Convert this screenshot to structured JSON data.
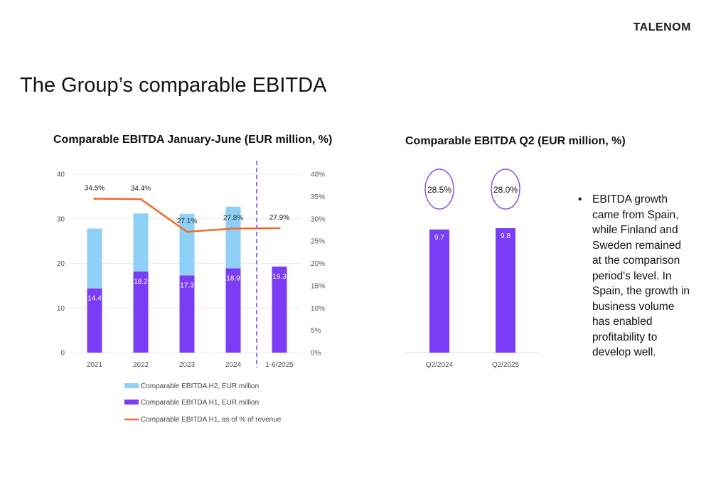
{
  "logo": "TALENOM",
  "slide_title": "The Group’s comparable EBITDA",
  "bullet": "EBITDA growth came from Spain, while Finland and Sweden remained at the comparison period's level. In Spain, the growth in business volume has enabled profitability to develop well.",
  "colors": {
    "h1": "#7a3df5",
    "h2": "#8fd0f7",
    "line": "#f06a2c",
    "divider": "#7a3df5",
    "circle": "#8a55e0"
  },
  "chart_data": [
    {
      "type": "bar",
      "title": "Comparable EBITDA January-June (EUR million, %)",
      "categories": [
        "2021",
        "2022",
        "2023",
        "2024",
        "1-6/2025"
      ],
      "stacked": true,
      "ylim": [
        0,
        40
      ],
      "y_ticks": [
        "0",
        "10",
        "20",
        "30",
        "40"
      ],
      "y2lim": [
        0,
        40
      ],
      "y2_ticks": [
        "0%",
        "5%",
        "10%",
        "15%",
        "20%",
        "25%",
        "30%",
        "35%",
        "40%"
      ],
      "series": [
        {
          "name": "Comparable EBITDA H1, EUR million",
          "type": "bar",
          "values": [
            14.4,
            18.2,
            17.3,
            18.9,
            19.3
          ],
          "labels": [
            "14.4",
            "18.2",
            "17.3",
            "18.9",
            "19.3"
          ]
        },
        {
          "name": "Comparable EBITDA H2, EUR million",
          "type": "bar",
          "values": [
            13.4,
            13.0,
            13.8,
            13.8,
            null
          ]
        },
        {
          "name": "Comparable EBITDA H1, as of % of revenue",
          "type": "line",
          "axis": "right",
          "values": [
            34.5,
            34.4,
            27.1,
            27.8,
            27.9
          ],
          "labels": [
            "34.5%",
            "34.4%",
            "27.1%",
            "27.8%",
            "27.9%"
          ]
        }
      ],
      "legend": [
        "Comparable EBITDA H2, EUR million",
        "Comparable EBITDA H1, EUR million",
        "Comparable EBITDA H1, as of % of revenue"
      ],
      "legend_position": "bottom",
      "grid": true
    },
    {
      "type": "bar",
      "title": "Comparable EBITDA Q2 (EUR million, %)",
      "categories": [
        "Q2/2024",
        "Q2/2025"
      ],
      "ylim": [
        0,
        14
      ],
      "series": [
        {
          "name": "Comparable EBITDA Q2, EUR million",
          "values": [
            9.7,
            9.8
          ],
          "labels": [
            "9.7",
            "9.8"
          ]
        }
      ],
      "margins": [
        "28.5%",
        "28.0%"
      ],
      "grid": false
    }
  ]
}
